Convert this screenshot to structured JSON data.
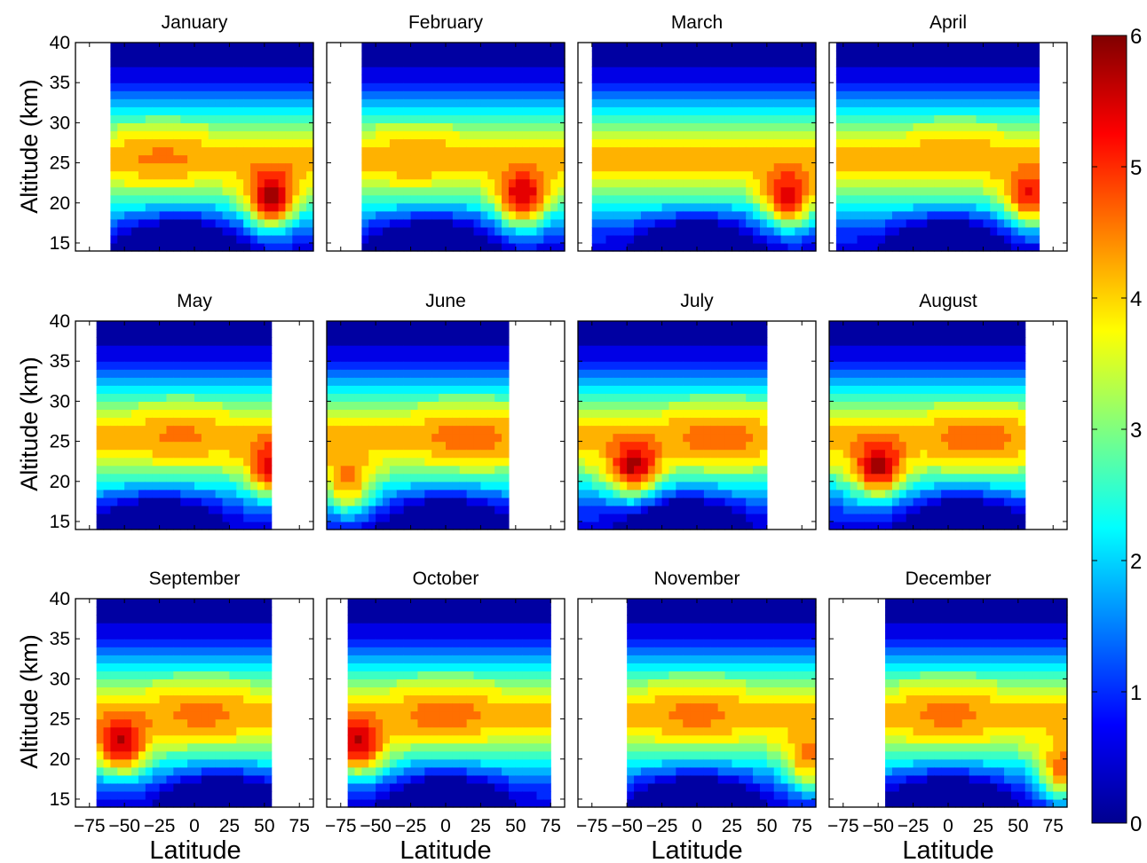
{
  "figure": {
    "ylabel": "Altitude (km)",
    "xlabel": "Latitude",
    "colorbar": {
      "ticks": [
        "0",
        "1",
        "2",
        "3",
        "4",
        "5",
        "6"
      ],
      "range": [
        0,
        6
      ],
      "colormap": "jet"
    }
  },
  "chart_data": {
    "type": "contour",
    "grid": false,
    "xlim": [
      -85,
      85
    ],
    "ylim": [
      14,
      40
    ],
    "xticks": [
      -75,
      -50,
      -25,
      0,
      25,
      50,
      75
    ],
    "xtick_labels": [
      "−75",
      "−50",
      "−25",
      "0",
      "25",
      "50",
      "75"
    ],
    "yticks": [
      15,
      20,
      25,
      30,
      35,
      40
    ],
    "ytick_labels": [
      "15",
      "20",
      "25",
      "30",
      "35",
      "40"
    ],
    "contour_levels": [
      0,
      0.4,
      0.8,
      1.2,
      1.6,
      2.0,
      2.4,
      2.8,
      3.2,
      3.6,
      4.0,
      4.4,
      4.8,
      5.2,
      5.6,
      6.0
    ],
    "panels": [
      {
        "title": "January",
        "data_lat_range": [
          -60,
          85
        ],
        "tropical_max": {
          "lat": -22,
          "alt": 26,
          "value": 4.3
        },
        "high_lat_max": {
          "lat": 55,
          "alt": 20,
          "value": 5.6
        },
        "low_min": {
          "lat": -10,
          "alt": 15,
          "value": 0.1
        }
      },
      {
        "title": "February",
        "data_lat_range": [
          -62,
          85
        ],
        "tropical_max": {
          "lat": -22,
          "alt": 26,
          "value": 4.2
        },
        "high_lat_max": {
          "lat": 55,
          "alt": 20,
          "value": 5.4
        },
        "low_min": {
          "lat": -10,
          "alt": 15,
          "value": 0.15
        }
      },
      {
        "title": "March",
        "data_lat_range": [
          -75,
          85
        ],
        "tropical_max": {
          "lat": -10,
          "alt": 26,
          "value": 4.0
        },
        "high_lat_max": {
          "lat": 65,
          "alt": 20,
          "value": 5.2
        },
        "low_min": {
          "lat": 0,
          "alt": 15,
          "value": 0.15
        }
      },
      {
        "title": "April",
        "data_lat_range": [
          -80,
          65
        ],
        "tropical_max": {
          "lat": 5,
          "alt": 27,
          "value": 4.2
        },
        "high_lat_max": {
          "lat": 58,
          "alt": 20,
          "value": 4.9
        },
        "low_min": {
          "lat": 0,
          "alt": 15,
          "value": 0.1
        }
      },
      {
        "title": "May",
        "data_lat_range": [
          -70,
          55
        ],
        "tropical_max": {
          "lat": -10,
          "alt": 26,
          "value": 4.3
        },
        "high_lat_max": {
          "lat": 55,
          "alt": 21,
          "value": 4.6
        },
        "low_min": {
          "lat": -25,
          "alt": 15,
          "value": 0.3
        }
      },
      {
        "title": "June",
        "data_lat_range": [
          -85,
          45
        ],
        "tropical_max": {
          "lat": 15,
          "alt": 26,
          "value": 4.5
        },
        "high_lat_max": {
          "lat": -70,
          "alt": 19,
          "value": 4.6
        },
        "low_min": {
          "lat": 0,
          "alt": 15,
          "value": 0.1
        }
      },
      {
        "title": "July",
        "data_lat_range": [
          -85,
          50
        ],
        "tropical_max": {
          "lat": 15,
          "alt": 26,
          "value": 4.5
        },
        "high_lat_max": {
          "lat": -45,
          "alt": 21,
          "value": 5.0
        },
        "low_min": {
          "lat": -10,
          "alt": 15,
          "value": 0.2
        }
      },
      {
        "title": "August",
        "data_lat_range": [
          -85,
          55
        ],
        "tropical_max": {
          "lat": 20,
          "alt": 25,
          "value": 4.5
        },
        "high_lat_max": {
          "lat": -50,
          "alt": 21,
          "value": 5.0
        },
        "low_min": {
          "lat": 10,
          "alt": 15,
          "value": 0.1
        }
      },
      {
        "title": "September",
        "data_lat_range": [
          -70,
          55
        ],
        "tropical_max": {
          "lat": 5,
          "alt": 26,
          "value": 4.4
        },
        "high_lat_max": {
          "lat": -52,
          "alt": 21,
          "value": 4.9
        },
        "low_min": {
          "lat": 20,
          "alt": 15,
          "value": 0.2
        }
      },
      {
        "title": "October",
        "data_lat_range": [
          -70,
          75
        ],
        "tropical_max": {
          "lat": 0,
          "alt": 26,
          "value": 4.5
        },
        "high_lat_max": {
          "lat": -62,
          "alt": 21,
          "value": 4.9
        },
        "low_min": {
          "lat": 0,
          "alt": 15,
          "value": 0.2
        }
      },
      {
        "title": "November",
        "data_lat_range": [
          -50,
          85
        ],
        "tropical_max": {
          "lat": 0,
          "alt": 26,
          "value": 4.4
        },
        "high_lat_max": {
          "lat": 80,
          "alt": 19,
          "value": 4.6
        },
        "low_min": {
          "lat": 0,
          "alt": 15,
          "value": 0.1
        }
      },
      {
        "title": "December",
        "data_lat_range": [
          -45,
          85
        ],
        "tropical_max": {
          "lat": 0,
          "alt": 26,
          "value": 4.4
        },
        "high_lat_max": {
          "lat": 82,
          "alt": 18,
          "value": 5.3
        },
        "low_min": {
          "lat": 0,
          "alt": 15,
          "value": 0.1
        }
      }
    ]
  }
}
